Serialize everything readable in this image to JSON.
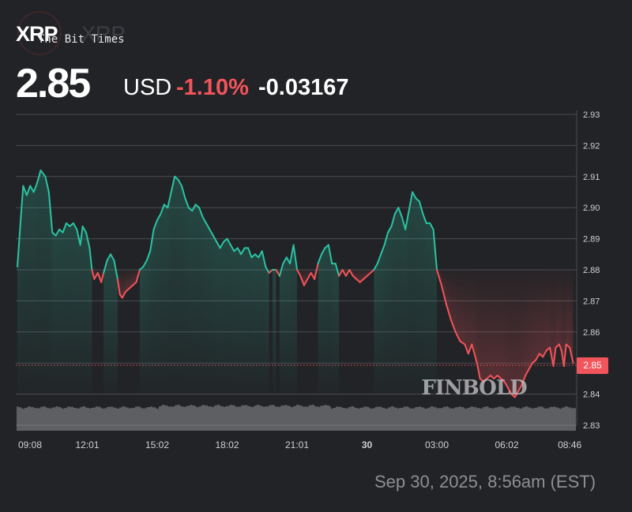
{
  "header": {
    "symbol": "XRP",
    "symbol_ghost": "XRP",
    "watermark": "The Bit Times",
    "price": "2.85",
    "currency": "USD",
    "change_pct": "-1.10%",
    "change_abs": "-0.03167",
    "brand": "FINBOLD"
  },
  "timestamp": "Sep 30, 2025, 8:56am (EST)",
  "colors": {
    "up": "#2bc3a3",
    "down": "#f2545b",
    "grid": "#4a4b50",
    "background": "#222326"
  },
  "chart_data": {
    "type": "line",
    "ylim": [
      2.83,
      2.93
    ],
    "y_ticks": [
      "2.93",
      "2.92",
      "2.91",
      "2.90",
      "2.89",
      "2.88",
      "2.87",
      "2.86",
      "2.85",
      "2.84",
      "2.83"
    ],
    "x_ticks": [
      {
        "label": "09:08",
        "pos": 0
      },
      {
        "label": "12:01",
        "pos": 3
      },
      {
        "label": "15:02",
        "pos": 6
      },
      {
        "label": "18:02",
        "pos": 9
      },
      {
        "label": "21:01",
        "pos": 12
      },
      {
        "label": "30",
        "pos": 15
      },
      {
        "label": "03:00",
        "pos": 18
      },
      {
        "label": "06:02",
        "pos": 21
      },
      {
        "label": "08:46",
        "pos": 23.7
      }
    ],
    "x_domain": [
      0,
      24
    ],
    "baseline": 2.8493,
    "last_price_label": "2.85",
    "grid": true,
    "series": [
      {
        "values": [
          [
            0,
            2.881
          ],
          [
            0.15,
            2.897
          ],
          [
            0.25,
            2.907
          ],
          [
            0.4,
            2.904
          ],
          [
            0.55,
            2.907
          ],
          [
            0.7,
            2.905
          ],
          [
            0.85,
            2.908
          ],
          [
            1.0,
            2.912
          ],
          [
            1.2,
            2.91
          ],
          [
            1.35,
            2.905
          ],
          [
            1.5,
            2.892
          ],
          [
            1.65,
            2.891
          ],
          [
            1.8,
            2.893
          ],
          [
            1.95,
            2.892
          ],
          [
            2.1,
            2.895
          ],
          [
            2.25,
            2.894
          ],
          [
            2.4,
            2.895
          ],
          [
            2.55,
            2.893
          ],
          [
            2.7,
            2.888
          ],
          [
            2.8,
            2.894
          ],
          [
            2.95,
            2.892
          ],
          [
            3.1,
            2.887
          ],
          [
            3.2,
            2.88
          ],
          [
            3.3,
            2.877
          ],
          [
            3.45,
            2.879
          ],
          [
            3.6,
            2.876
          ],
          [
            3.7,
            2.879
          ],
          [
            3.85,
            2.883
          ],
          [
            4.0,
            2.885
          ],
          [
            4.15,
            2.883
          ],
          [
            4.3,
            2.877
          ],
          [
            4.4,
            2.872
          ],
          [
            4.5,
            2.871
          ],
          [
            4.65,
            2.873
          ],
          [
            4.8,
            2.874
          ],
          [
            4.95,
            2.875
          ],
          [
            5.1,
            2.876
          ],
          [
            5.25,
            2.88
          ],
          [
            5.4,
            2.881
          ],
          [
            5.55,
            2.883
          ],
          [
            5.7,
            2.886
          ],
          [
            5.85,
            2.893
          ],
          [
            6.0,
            2.896
          ],
          [
            6.15,
            2.898
          ],
          [
            6.3,
            2.901
          ],
          [
            6.45,
            2.9
          ],
          [
            6.6,
            2.905
          ],
          [
            6.75,
            2.91
          ],
          [
            6.9,
            2.909
          ],
          [
            7.05,
            2.907
          ],
          [
            7.2,
            2.903
          ],
          [
            7.35,
            2.9
          ],
          [
            7.5,
            2.899
          ],
          [
            7.65,
            2.901
          ],
          [
            7.8,
            2.9
          ],
          [
            7.95,
            2.897
          ],
          [
            8.1,
            2.895
          ],
          [
            8.25,
            2.893
          ],
          [
            8.4,
            2.891
          ],
          [
            8.55,
            2.889
          ],
          [
            8.7,
            2.887
          ],
          [
            8.85,
            2.889
          ],
          [
            9.0,
            2.89
          ],
          [
            9.15,
            2.888
          ],
          [
            9.3,
            2.886
          ],
          [
            9.45,
            2.887
          ],
          [
            9.6,
            2.885
          ],
          [
            9.75,
            2.887
          ],
          [
            9.9,
            2.887
          ],
          [
            10.05,
            2.884
          ],
          [
            10.2,
            2.885
          ],
          [
            10.35,
            2.884
          ],
          [
            10.5,
            2.886
          ],
          [
            10.65,
            2.881
          ],
          [
            10.8,
            2.879
          ],
          [
            10.95,
            2.88
          ],
          [
            11.1,
            2.88
          ],
          [
            11.25,
            2.878
          ],
          [
            11.4,
            2.882
          ],
          [
            11.55,
            2.884
          ],
          [
            11.7,
            2.882
          ],
          [
            11.85,
            2.888
          ],
          [
            12.0,
            2.88
          ],
          [
            12.15,
            2.878
          ],
          [
            12.3,
            2.875
          ],
          [
            12.45,
            2.877
          ],
          [
            12.6,
            2.879
          ],
          [
            12.75,
            2.877
          ],
          [
            12.9,
            2.882
          ],
          [
            13.05,
            2.885
          ],
          [
            13.2,
            2.887
          ],
          [
            13.35,
            2.888
          ],
          [
            13.5,
            2.882
          ],
          [
            13.65,
            2.882
          ],
          [
            13.8,
            2.878
          ],
          [
            13.95,
            2.88
          ],
          [
            14.1,
            2.878
          ],
          [
            14.25,
            2.88
          ],
          [
            14.4,
            2.878
          ],
          [
            14.55,
            2.877
          ],
          [
            14.7,
            2.876
          ],
          [
            14.85,
            2.877
          ],
          [
            15.0,
            2.878
          ],
          [
            15.15,
            2.879
          ],
          [
            15.3,
            2.88
          ],
          [
            15.45,
            2.882
          ],
          [
            15.6,
            2.885
          ],
          [
            15.75,
            2.888
          ],
          [
            15.9,
            2.892
          ],
          [
            16.05,
            2.894
          ],
          [
            16.2,
            2.898
          ],
          [
            16.35,
            2.9
          ],
          [
            16.5,
            2.897
          ],
          [
            16.65,
            2.893
          ],
          [
            16.8,
            2.899
          ],
          [
            16.95,
            2.905
          ],
          [
            17.1,
            2.903
          ],
          [
            17.25,
            2.902
          ],
          [
            17.4,
            2.898
          ],
          [
            17.55,
            2.895
          ],
          [
            17.7,
            2.895
          ],
          [
            17.85,
            2.893
          ],
          [
            18.0,
            2.88
          ],
          [
            18.2,
            2.875
          ],
          [
            18.4,
            2.869
          ],
          [
            18.6,
            2.864
          ],
          [
            18.8,
            2.86
          ],
          [
            19.0,
            2.857
          ],
          [
            19.2,
            2.856
          ],
          [
            19.35,
            2.853
          ],
          [
            19.5,
            2.856
          ],
          [
            19.65,
            2.852
          ],
          [
            19.75,
            2.849
          ],
          [
            19.85,
            2.845
          ],
          [
            20.0,
            2.844
          ],
          [
            20.15,
            2.845
          ],
          [
            20.3,
            2.846
          ],
          [
            20.45,
            2.845
          ],
          [
            20.6,
            2.846
          ],
          [
            20.75,
            2.845
          ],
          [
            20.9,
            2.844
          ],
          [
            21.05,
            2.842
          ],
          [
            21.2,
            2.84
          ],
          [
            21.35,
            2.839
          ],
          [
            21.5,
            2.841
          ],
          [
            21.65,
            2.843
          ],
          [
            21.8,
            2.846
          ],
          [
            21.95,
            2.848
          ],
          [
            22.1,
            2.85
          ],
          [
            22.25,
            2.851
          ],
          [
            22.4,
            2.853
          ],
          [
            22.55,
            2.852
          ],
          [
            22.7,
            2.854
          ],
          [
            22.85,
            2.855
          ],
          [
            23.0,
            2.849
          ],
          [
            23.1,
            2.855
          ],
          [
            23.25,
            2.856
          ],
          [
            23.35,
            2.854
          ],
          [
            23.45,
            2.849
          ],
          [
            23.55,
            2.856
          ],
          [
            23.7,
            2.855
          ],
          [
            23.85,
            2.85
          ]
        ]
      }
    ]
  }
}
